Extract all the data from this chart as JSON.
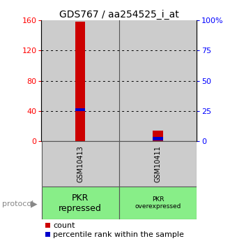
{
  "title": "GDS767 / aa254525_i_at",
  "left_yticks": [
    0,
    40,
    80,
    120,
    160
  ],
  "right_yticks": [
    0,
    25,
    50,
    75,
    100
  ],
  "ylim": [
    0,
    160
  ],
  "right_ylim": [
    0,
    100
  ],
  "bars": [
    {
      "x": 0,
      "label": "GSM10413",
      "count": 158,
      "percentile": 26,
      "group_line1": "PKR",
      "group_line2": "repressed"
    },
    {
      "x": 1,
      "label": "GSM10411",
      "count": 14,
      "percentile": 2,
      "group_line1": "PKR",
      "group_line2": "overexpressed"
    }
  ],
  "count_color": "#cc0000",
  "percentile_color": "#0000cc",
  "bar_face_color": "#cccccc",
  "bar_edge_color": "#555555",
  "group_bg_color": "#88ee88",
  "background_color": "#ffffff",
  "title_fontsize": 10,
  "tick_fontsize": 8,
  "legend_fontsize": 8,
  "protocol_label": "protocol",
  "legend_items": [
    {
      "color": "#cc0000",
      "label": "count"
    },
    {
      "color": "#0000cc",
      "label": "percentile rank within the sample"
    }
  ]
}
